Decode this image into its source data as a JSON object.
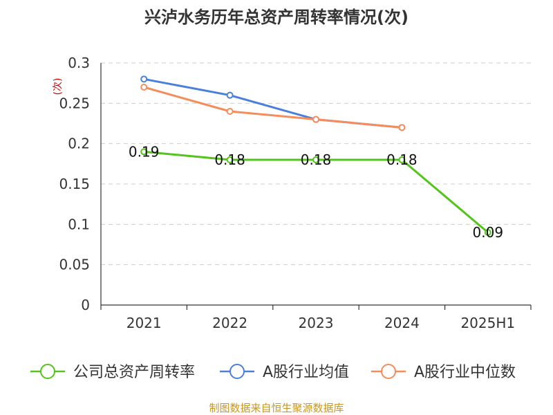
{
  "chart_data": {
    "type": "line",
    "title": "兴泸水务历年总资产周转率情况(次)",
    "ylabel": "(次)",
    "xlabel": "",
    "categories": [
      "2021",
      "2022",
      "2023",
      "2024",
      "2025H1"
    ],
    "ylim": [
      0,
      0.3
    ],
    "yticks": [
      "0",
      "0.05",
      "0.1",
      "0.15",
      "0.2",
      "0.25",
      "0.3"
    ],
    "ytick_values": [
      0,
      0.05,
      0.1,
      0.15,
      0.2,
      0.25,
      0.3
    ],
    "grid": true,
    "legend_position": "bottom",
    "series": [
      {
        "name": "公司总资产周转率",
        "color": "#52c41a",
        "values": [
          0.19,
          0.18,
          0.18,
          0.18,
          0.09
        ],
        "labels": [
          "0.19",
          "0.18",
          "0.18",
          "0.18",
          "0.09"
        ]
      },
      {
        "name": "A股行业均值",
        "color": "#4a7fdc",
        "values": [
          0.28,
          0.26,
          0.23,
          0.22,
          null
        ],
        "labels": []
      },
      {
        "name": "A股行业中位数",
        "color": "#f58c5a",
        "values": [
          0.27,
          0.24,
          0.23,
          0.22,
          null
        ],
        "labels": []
      }
    ],
    "source": "制图数据来自恒生聚源数据库"
  }
}
